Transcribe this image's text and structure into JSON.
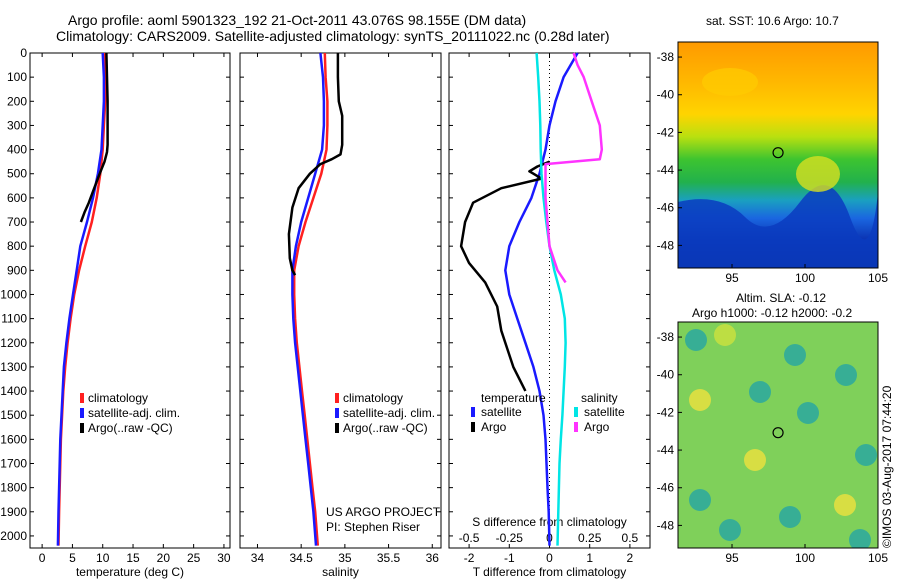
{
  "header": {
    "line1": "Argo profile: aoml 5901323_192 21-Oct-2011 43.076S 98.155E (DM data)",
    "line2": "Climatology: CARS2009. Satellite-adjusted climatology: synTS_20111022.nc (0.28d later)"
  },
  "depth_ticks": [
    "0",
    "100",
    "200",
    "300",
    "400",
    "500",
    "600",
    "700",
    "800",
    "900",
    "1000",
    "1100",
    "1200",
    "1300",
    "1400",
    "1500",
    "1600",
    "1700",
    "1800",
    "1900",
    "2000"
  ],
  "colors": {
    "climatology": "#ff2020",
    "satellite": "#1a1aff",
    "argo": "#000000",
    "sat_salinity": "#00e5e5",
    "argo_salinity": "#ff33ff"
  },
  "chart_data": [
    {
      "type": "line",
      "xlabel": "temperature (deg C)",
      "ylabel": "",
      "xlim": [
        -2,
        31
      ],
      "ylim": [
        2050,
        0
      ],
      "xticks": [
        "0",
        "5",
        "10",
        "15",
        "20",
        "25",
        "30"
      ],
      "legend": {
        "placement": "lower-center",
        "entries": [
          "climatology",
          "satellite-adj. clim.",
          "Argo(..raw -QC)"
        ]
      },
      "series": [
        {
          "name": "climatology",
          "color": "#ff2020",
          "x": [
            10.3,
            10.4,
            10.4,
            10.2,
            10.0,
            9.6,
            9.0,
            8.2,
            7.1,
            6.1,
            5.3,
            4.7,
            4.2,
            3.8,
            3.5,
            3.3,
            3.1,
            3.0,
            2.9,
            2.8,
            2.7
          ],
          "y": [
            0,
            100,
            200,
            300,
            400,
            500,
            600,
            700,
            800,
            900,
            1000,
            1100,
            1200,
            1300,
            1400,
            1500,
            1600,
            1700,
            1800,
            1900,
            2040
          ]
        },
        {
          "name": "satellite-adj. clim.",
          "color": "#1a1aff",
          "x": [
            10.0,
            10.2,
            10.2,
            10.0,
            9.8,
            9.2,
            8.4,
            7.4,
            6.3,
            5.7,
            5.1,
            4.5,
            4.0,
            3.6,
            3.4,
            3.2,
            3.0,
            2.9,
            2.8,
            2.7,
            2.6
          ],
          "y": [
            0,
            100,
            200,
            300,
            400,
            500,
            600,
            700,
            800,
            900,
            1000,
            1100,
            1200,
            1300,
            1400,
            1500,
            1600,
            1700,
            1800,
            1900,
            2040
          ]
        },
        {
          "name": "Argo(..raw -QC)",
          "color": "#000000",
          "x": [
            10.6,
            10.7,
            10.8,
            10.8,
            10.8,
            10.7,
            10.6,
            10.3,
            9.5,
            8.6,
            7.7,
            7.0,
            6.4
          ],
          "y": [
            0,
            100,
            200,
            300,
            380,
            410,
            420,
            450,
            500,
            560,
            620,
            660,
            700
          ]
        }
      ],
      "annotations": []
    },
    {
      "type": "line",
      "xlabel": "salinity",
      "xlim": [
        33.8,
        36.1
      ],
      "ylim": [
        2050,
        0
      ],
      "xticks": [
        "34",
        "34.5",
        "35",
        "35.5",
        "36"
      ],
      "legend": {
        "placement": "lower-right",
        "entries": [
          "climatology",
          "satellite-adj. clim.",
          "Argo(..raw -QC)"
        ]
      },
      "series": [
        {
          "name": "climatology",
          "color": "#ff2020",
          "x": [
            34.77,
            34.78,
            34.8,
            34.8,
            34.79,
            34.73,
            34.64,
            34.55,
            34.47,
            34.42,
            34.42,
            34.43,
            34.45,
            34.48,
            34.51,
            34.54,
            34.57,
            34.6,
            34.63,
            34.66,
            34.69
          ],
          "y": [
            0,
            100,
            200,
            300,
            400,
            500,
            600,
            700,
            800,
            900,
            1000,
            1100,
            1200,
            1300,
            1400,
            1500,
            1600,
            1700,
            1800,
            1900,
            2040
          ]
        },
        {
          "name": "satellite-adj. clim.",
          "color": "#1a1aff",
          "x": [
            34.72,
            34.75,
            34.76,
            34.76,
            34.74,
            34.66,
            34.58,
            34.5,
            34.44,
            34.4,
            34.4,
            34.41,
            34.43,
            34.46,
            34.49,
            34.52,
            34.55,
            34.58,
            34.61,
            34.64,
            34.67
          ],
          "y": [
            0,
            100,
            200,
            300,
            400,
            500,
            600,
            700,
            800,
            900,
            1000,
            1100,
            1200,
            1300,
            1400,
            1500,
            1600,
            1700,
            1800,
            1900,
            2040
          ]
        },
        {
          "name": "Argo(..raw -QC)",
          "color": "#000000",
          "x": [
            34.92,
            34.92,
            34.93,
            34.97,
            34.97,
            34.95,
            34.85,
            34.72,
            34.6,
            34.47,
            34.4,
            34.36,
            34.37,
            34.4,
            34.43
          ],
          "y": [
            0,
            100,
            200,
            260,
            380,
            420,
            440,
            460,
            500,
            560,
            640,
            750,
            850,
            900,
            920
          ]
        }
      ],
      "annotations": [
        "US ARGO PROJECT",
        "PI: Stephen Riser"
      ]
    },
    {
      "type": "line",
      "xlabel": "T difference from climatology",
      "xlabel_top": "S difference from climatology",
      "xlim": [
        -2.5,
        2.5
      ],
      "ylim": [
        2050,
        0
      ],
      "xticks": [
        "-2",
        "-1",
        "0",
        "1",
        "2"
      ],
      "xticks_top": [
        "-0.5",
        "-0.25",
        "0",
        "0.25",
        "0.5"
      ],
      "legend": {
        "placement": "lower-center",
        "titles": [
          "temperature",
          "salinity"
        ],
        "entries": [
          "satellite",
          "Argo",
          "satellite",
          "Argo"
        ]
      },
      "series": [
        {
          "name": "satellite",
          "group": "temperature",
          "color": "#1a1aff",
          "x": [
            0.7,
            0.35,
            0.15,
            0.0,
            -0.1,
            -0.25,
            -0.45,
            -0.75,
            -1.0,
            -1.1,
            -1.0,
            -0.8,
            -0.6,
            -0.4,
            -0.25,
            -0.15,
            -0.1,
            -0.05,
            -0.02,
            0.0
          ],
          "y": [
            0,
            100,
            200,
            300,
            400,
            500,
            600,
            700,
            800,
            900,
            1000,
            1100,
            1200,
            1300,
            1400,
            1500,
            1600,
            1800,
            1900,
            2040
          ]
        },
        {
          "name": "Argo",
          "group": "temperature",
          "color": "#000000",
          "x": [
            0.0,
            -0.3,
            -0.5,
            -0.4,
            -0.2,
            -1.2,
            -1.9,
            -2.1,
            -2.2,
            -2.0,
            -1.6,
            -1.3,
            -1.2,
            -0.9,
            -0.6
          ],
          "y": [
            450,
            470,
            490,
            500,
            520,
            560,
            620,
            700,
            800,
            870,
            950,
            1050,
            1150,
            1300,
            1400
          ]
        },
        {
          "name": "satellite",
          "group": "salinity",
          "color": "#00e5e5",
          "x": [
            -0.32,
            -0.28,
            -0.25,
            -0.23,
            -0.22,
            -0.2,
            -0.15,
            -0.08,
            0.0,
            0.12,
            0.28,
            0.38,
            0.4,
            0.38,
            0.32,
            0.28,
            0.25,
            0.22,
            0.2
          ],
          "y": [
            0,
            100,
            200,
            300,
            400,
            500,
            600,
            700,
            800,
            900,
            1000,
            1100,
            1200,
            1300,
            1500,
            1600,
            1700,
            1900,
            2040
          ]
        },
        {
          "name": "Argo",
          "group": "salinity",
          "color": "#ff33ff",
          "x": [
            0.6,
            0.7,
            0.85,
            1.05,
            1.25,
            1.3,
            1.25,
            -0.1,
            -0.1,
            0.0,
            0.2,
            0.4
          ],
          "y": [
            0,
            50,
            100,
            200,
            300,
            400,
            440,
            460,
            600,
            800,
            900,
            950
          ]
        }
      ],
      "annotations": []
    }
  ],
  "map_sst": {
    "title": "sat. SST: 10.6  Argo: 10.7",
    "yticks": [
      "-38",
      "-40",
      "-42",
      "-44",
      "-46",
      "-48"
    ],
    "xticks": [
      "95",
      "100",
      "105"
    ]
  },
  "map_sla": {
    "title1": "Altim. SLA: -0.12",
    "title2": "Argo h1000: -0.12 h2000: -0.2",
    "yticks": [
      "-38",
      "-40",
      "-42",
      "-44",
      "-46",
      "-48"
    ],
    "xticks": [
      "95",
      "100",
      "105"
    ]
  },
  "side_label": "©IMOS 03-Aug-2017 07:44:20"
}
